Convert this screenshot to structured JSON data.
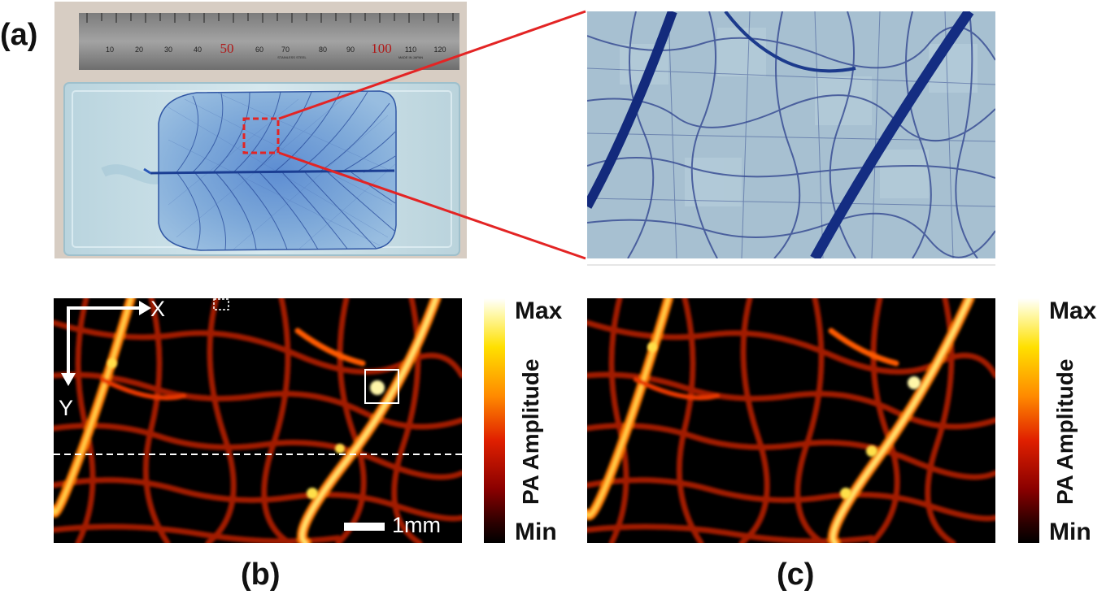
{
  "labels": {
    "a": "(a)",
    "b": "(b)",
    "c": "(c)"
  },
  "ruler": {
    "ticks": [
      "10",
      "20",
      "30",
      "40",
      "50",
      "60",
      "70",
      "80",
      "90",
      "100",
      "110",
      "120"
    ],
    "brand": "STAINLESS STEEL",
    "maker": "MADE IN JAPAN"
  },
  "colorbar": {
    "max": "Max",
    "min": "Min",
    "title": "PA Amplitude"
  },
  "axes": {
    "x": "X",
    "y": "Y"
  },
  "scalebar": {
    "label": "1mm"
  },
  "colors": {
    "red_box": "#e32424",
    "leaf_blue": "#1d3f9a",
    "phantom": "#c8dfe8"
  }
}
